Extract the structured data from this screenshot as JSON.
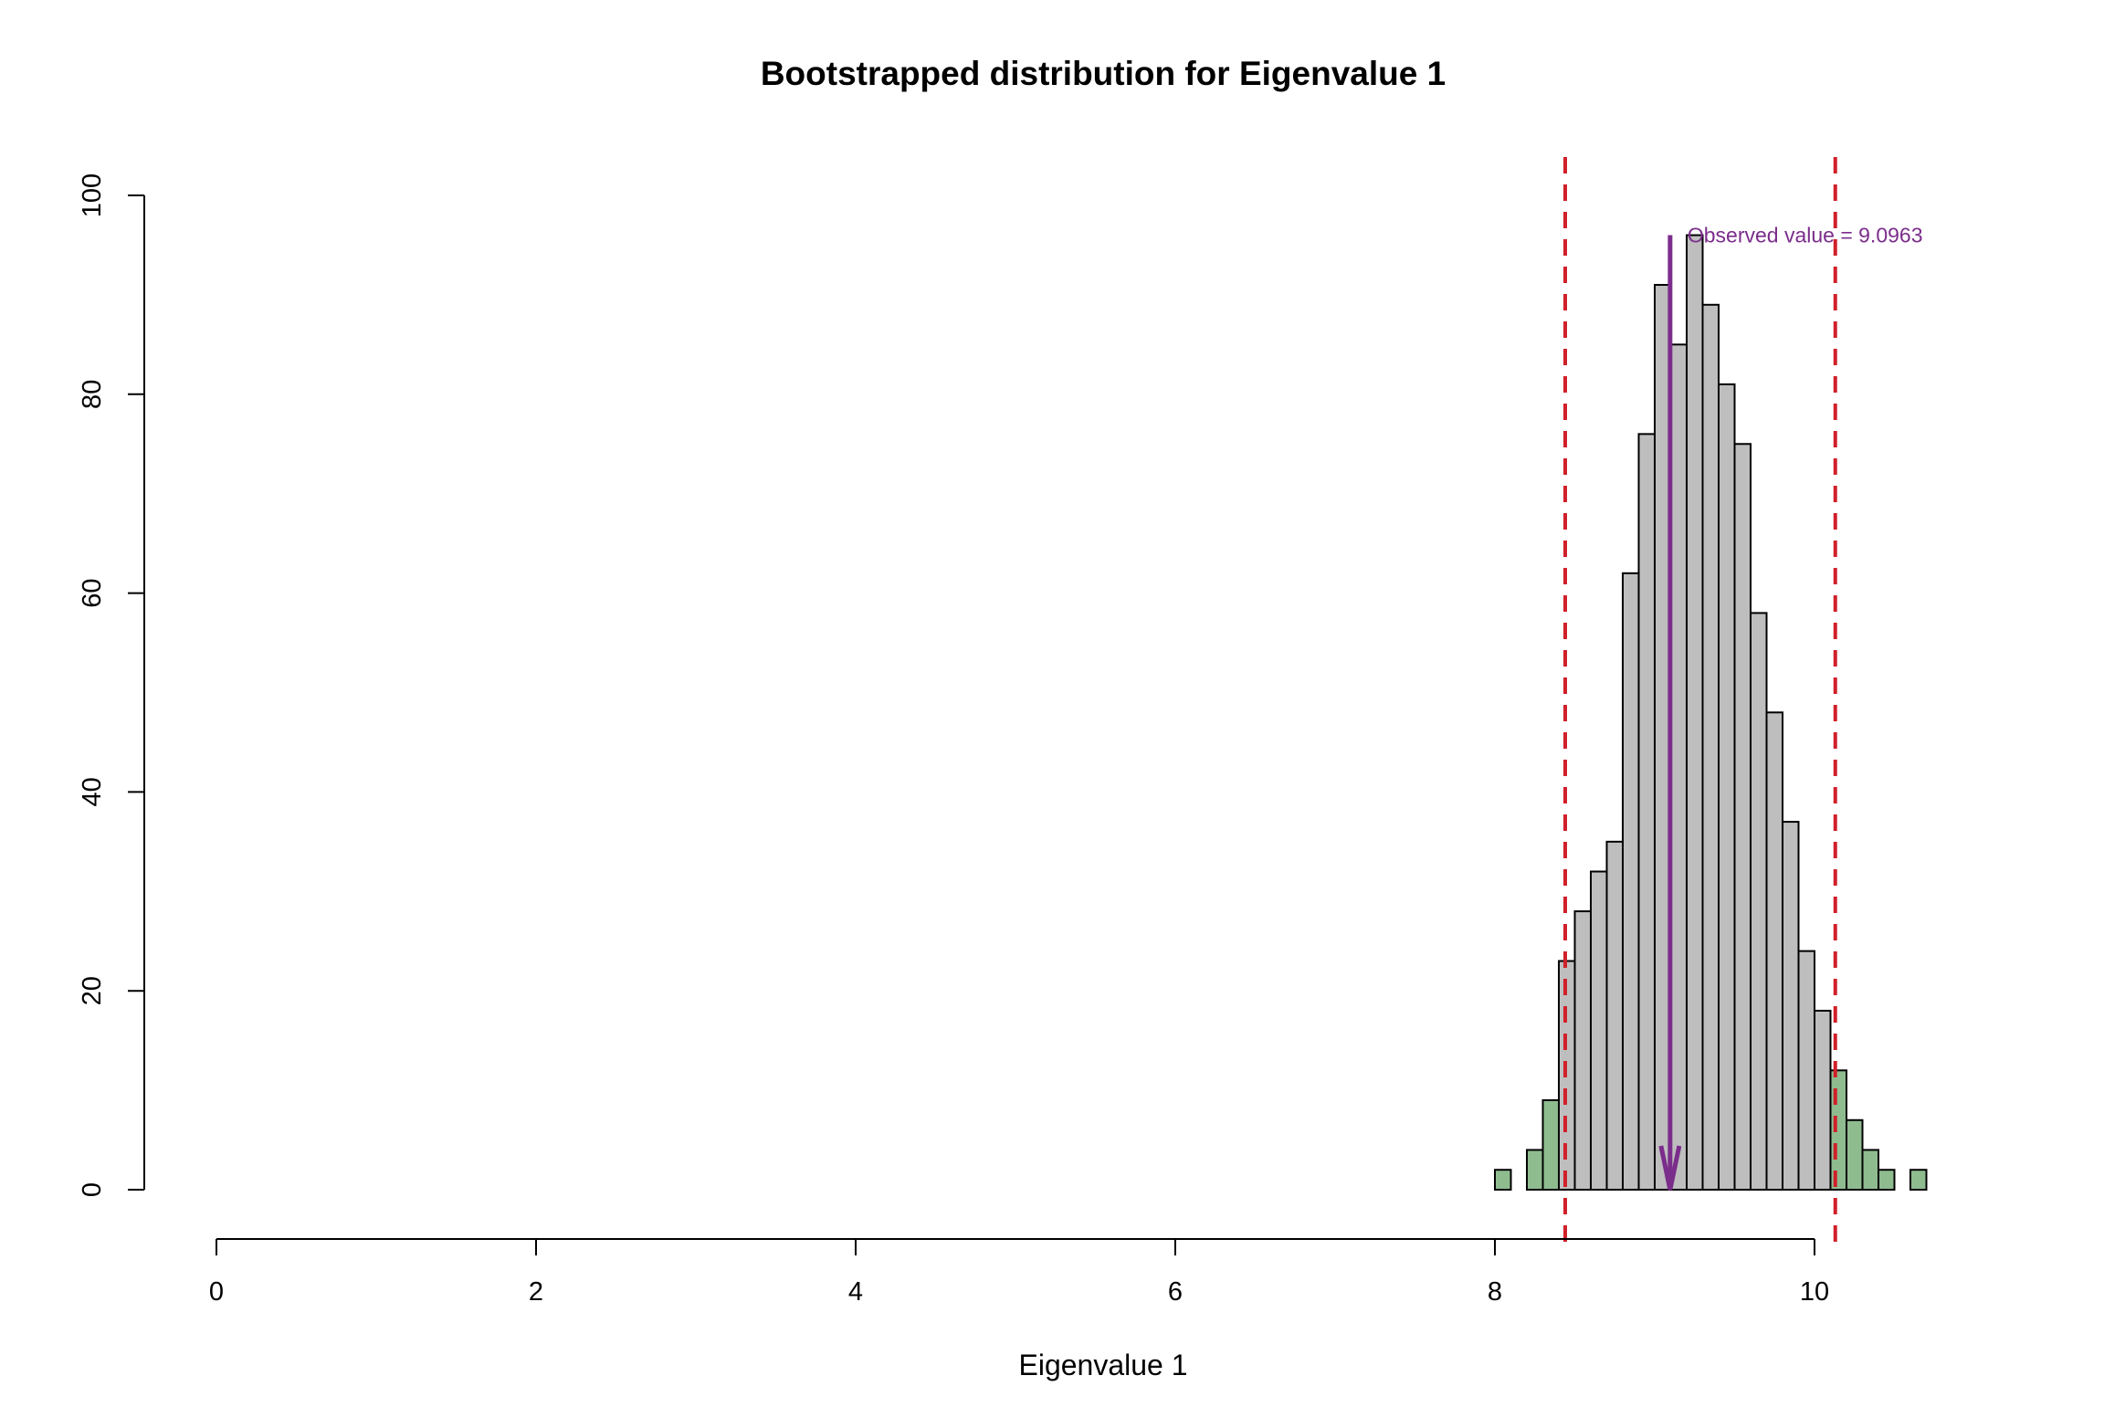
{
  "chart_data": {
    "type": "bar",
    "title": "Bootstrapped distribution for Eigenvalue 1",
    "xlabel": "Eigenvalue 1",
    "ylabel": "",
    "xlim": [
      0,
      10.7
    ],
    "ylim": [
      0,
      100
    ],
    "x_ticks": [
      0,
      2,
      4,
      6,
      8,
      10
    ],
    "y_ticks": [
      0,
      20,
      40,
      60,
      80,
      100
    ],
    "bin_width": 0.1,
    "bins": [
      {
        "start": 8.0,
        "count": 2,
        "tail": true
      },
      {
        "start": 8.1,
        "count": 0,
        "tail": true
      },
      {
        "start": 8.2,
        "count": 4,
        "tail": true
      },
      {
        "start": 8.3,
        "count": 9,
        "tail": true
      },
      {
        "start": 8.4,
        "count": 23,
        "tail": false
      },
      {
        "start": 8.5,
        "count": 28,
        "tail": false
      },
      {
        "start": 8.6,
        "count": 32,
        "tail": false
      },
      {
        "start": 8.7,
        "count": 35,
        "tail": false
      },
      {
        "start": 8.8,
        "count": 62,
        "tail": false
      },
      {
        "start": 8.9,
        "count": 76,
        "tail": false
      },
      {
        "start": 9.0,
        "count": 91,
        "tail": false
      },
      {
        "start": 9.1,
        "count": 85,
        "tail": false
      },
      {
        "start": 9.2,
        "count": 96,
        "tail": false
      },
      {
        "start": 9.3,
        "count": 89,
        "tail": false
      },
      {
        "start": 9.4,
        "count": 81,
        "tail": false
      },
      {
        "start": 9.5,
        "count": 75,
        "tail": false
      },
      {
        "start": 9.6,
        "count": 58,
        "tail": false
      },
      {
        "start": 9.7,
        "count": 48,
        "tail": false
      },
      {
        "start": 9.8,
        "count": 37,
        "tail": false
      },
      {
        "start": 9.9,
        "count": 24,
        "tail": false
      },
      {
        "start": 10.0,
        "count": 18,
        "tail": false
      },
      {
        "start": 10.1,
        "count": 12,
        "tail": true
      },
      {
        "start": 10.2,
        "count": 7,
        "tail": true
      },
      {
        "start": 10.3,
        "count": 4,
        "tail": true
      },
      {
        "start": 10.4,
        "count": 2,
        "tail": true
      },
      {
        "start": 10.5,
        "count": 0,
        "tail": true
      },
      {
        "start": 10.6,
        "count": 2,
        "tail": true
      }
    ],
    "ci_lines": [
      8.44,
      10.13
    ],
    "observed_value": 9.0963,
    "observed_label": "Observed value = 9.0963",
    "colors": {
      "bar_fill": "#bebebe",
      "tail_fill": "#8fbc8f",
      "bar_stroke": "#000000",
      "ci_line": "#d0202a",
      "observed": "#7b2d8b"
    }
  }
}
